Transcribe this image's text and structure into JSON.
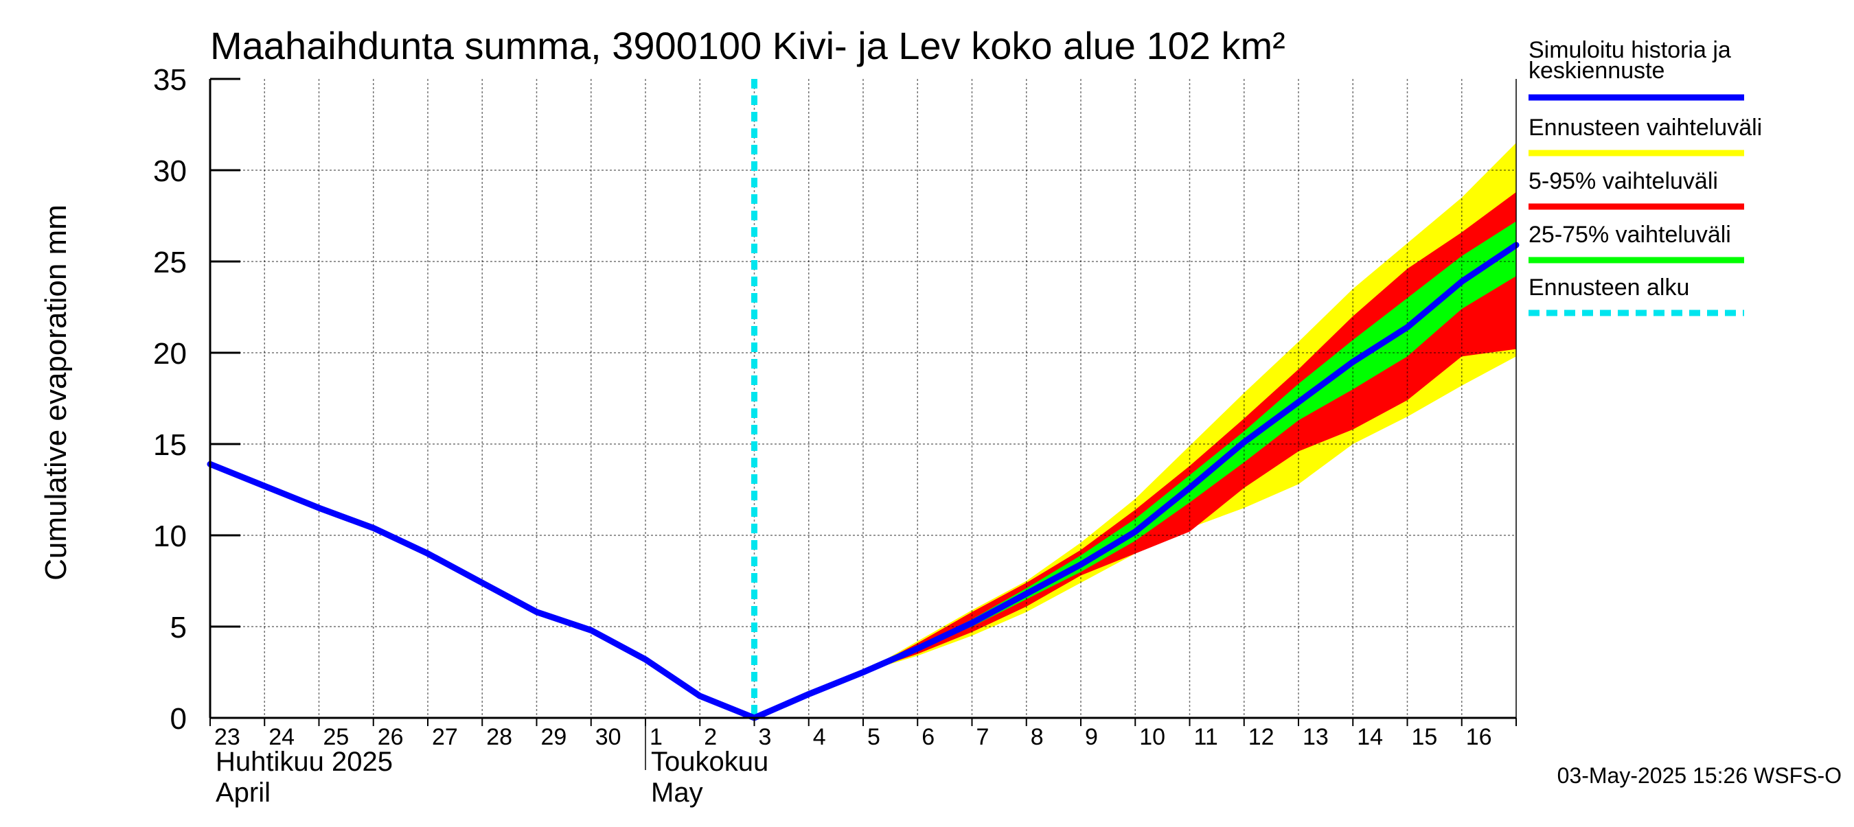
{
  "chart_data": {
    "type": "line",
    "title": "Maahaihdunta summa, 3900100 Kivi- ja Lev koko alue 102 km²",
    "ylabel": "Cumulative evaporation   mm",
    "ylim": [
      0,
      35
    ],
    "yticks": [
      "0",
      "5",
      "10",
      "15",
      "20",
      "25",
      "30",
      "35"
    ],
    "x_day_labels": [
      "23",
      "24",
      "25",
      "26",
      "27",
      "28",
      "29",
      "30",
      "1",
      "2",
      "3",
      "4",
      "5",
      "6",
      "7",
      "8",
      "9",
      "10",
      "11",
      "12",
      "13",
      "14",
      "15",
      "16"
    ],
    "x_range_days": [
      0,
      24
    ],
    "month_labels": [
      {
        "fi": "Huhtikuu  2025",
        "en": "April",
        "start_day": 0
      },
      {
        "fi": "Toukokuu",
        "en": "May",
        "start_day": 8
      }
    ],
    "forecast_start_day": 10,
    "series": [
      {
        "name": "Simuloitu historia ja keskiennuste",
        "color": "#0000ff",
        "x": [
          0,
          1,
          2,
          3,
          4,
          5,
          6,
          7,
          8,
          9,
          10,
          11,
          12,
          13,
          14,
          15,
          16,
          17,
          18,
          19,
          20,
          21,
          22,
          23,
          24
        ],
        "y": [
          13.9,
          12.7,
          11.5,
          10.4,
          9.0,
          7.4,
          5.8,
          4.8,
          3.2,
          1.2,
          0.0,
          1.3,
          2.5,
          3.8,
          5.2,
          6.8,
          8.4,
          10.2,
          12.6,
          15.1,
          17.3,
          19.5,
          21.4,
          23.9,
          25.9
        ]
      }
    ],
    "bands": [
      {
        "name": "Ennusteen vaihteluväli",
        "color": "#ffff00",
        "x": [
          12,
          13,
          14,
          15,
          16,
          17,
          18,
          19,
          20,
          21,
          22,
          23,
          24
        ],
        "low": [
          2.5,
          3.4,
          4.5,
          5.8,
          7.4,
          9.0,
          10.4,
          11.5,
          12.8,
          15.0,
          16.5,
          18.2,
          19.8
        ],
        "high": [
          2.5,
          4.2,
          5.9,
          7.5,
          9.6,
          12.0,
          14.9,
          17.8,
          20.6,
          23.5,
          26.0,
          28.5,
          31.5
        ]
      },
      {
        "name": "5-95% vaihteluväli",
        "color": "#ff0000",
        "x": [
          12,
          13,
          14,
          15,
          16,
          17,
          18,
          19,
          20,
          21,
          22,
          23,
          24
        ],
        "low": [
          2.5,
          3.5,
          4.7,
          6.1,
          7.8,
          9.0,
          10.2,
          12.6,
          14.6,
          15.8,
          17.4,
          19.8,
          20.2
        ],
        "high": [
          2.5,
          4.1,
          5.8,
          7.4,
          9.2,
          11.4,
          13.8,
          16.4,
          19.1,
          22.0,
          24.6,
          26.6,
          28.8
        ]
      },
      {
        "name": "25-75% vaihteluväli",
        "color": "#00ff00",
        "x": [
          12,
          13,
          14,
          15,
          16,
          17,
          18,
          19,
          20,
          21,
          22,
          23,
          24
        ],
        "low": [
          2.5,
          3.7,
          5.0,
          6.5,
          8.0,
          9.7,
          11.8,
          14.0,
          16.3,
          18.0,
          19.8,
          22.4,
          24.2
        ],
        "high": [
          2.5,
          3.9,
          5.4,
          7.1,
          8.9,
          10.9,
          13.3,
          15.7,
          18.3,
          20.7,
          23.0,
          25.3,
          27.2
        ]
      }
    ],
    "legend": [
      {
        "label": "Simuloitu historia ja keskiennuste",
        "color": "#0000ff",
        "style": "line"
      },
      {
        "label": "Ennusteen vaihteluväli",
        "color": "#ffff00",
        "style": "line"
      },
      {
        "label": "5-95% vaihteluväli",
        "color": "#ff0000",
        "style": "line"
      },
      {
        "label": "25-75% vaihteluväli",
        "color": "#00ff00",
        "style": "line"
      },
      {
        "label": "Ennusteen alku",
        "color": "#00e5ee",
        "style": "dashed"
      }
    ],
    "footer": "03-May-2025 15:26 WSFS-O"
  }
}
